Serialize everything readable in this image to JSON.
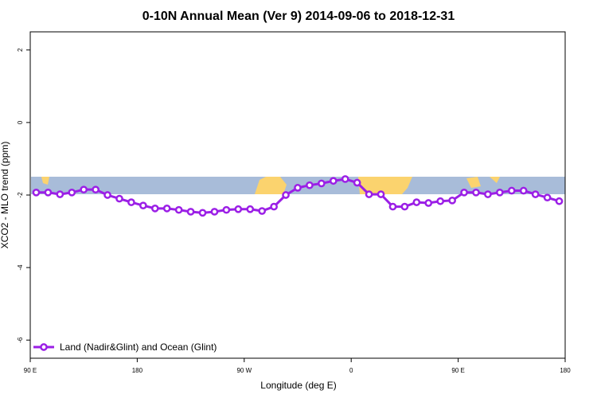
{
  "chart_data": {
    "type": "line",
    "title": "0-10N Annual Mean (Ver 9)   2014-09-06 to 2018-12-31",
    "xlabel": "Longitude (deg E)",
    "ylabel": "XCO2 - MLO trend (ppm)",
    "x": [
      95,
      105,
      115,
      125,
      135,
      145,
      155,
      165,
      175,
      185,
      195,
      205,
      215,
      225,
      235,
      245,
      255,
      265,
      275,
      285,
      295,
      305,
      315,
      325,
      335,
      345,
      355,
      365,
      375,
      385,
      395,
      405,
      415,
      425,
      435,
      445,
      455,
      465,
      475,
      485,
      495,
      505,
      515,
      525,
      535
    ],
    "series": [
      {
        "name": "Land (Nadir&Glint) and Ocean (Glint)",
        "color": "#9b1fe6",
        "values": [
          -1.93,
          -1.93,
          -1.98,
          -1.93,
          -1.85,
          -1.85,
          -2.0,
          -2.1,
          -2.2,
          -2.29,
          -2.37,
          -2.37,
          -2.41,
          -2.46,
          -2.49,
          -2.46,
          -2.41,
          -2.39,
          -2.39,
          -2.44,
          -2.32,
          -2.0,
          -1.8,
          -1.73,
          -1.68,
          -1.61,
          -1.56,
          -1.66,
          -1.98,
          -1.98,
          -2.32,
          -2.32,
          -2.2,
          -2.22,
          -2.17,
          -2.15,
          -1.93,
          -1.93,
          -1.98,
          -1.93,
          -1.88,
          -1.88,
          -1.98,
          -2.07,
          -2.17
        ]
      }
    ],
    "xlim": [
      90,
      540
    ],
    "xticks": [
      {
        "value": 90,
        "label": "90 E"
      },
      180,
      {
        "value": 270,
        "label": "90 W"
      },
      {
        "value": 360,
        "label": "0"
      },
      {
        "value": 450,
        "label": "90 E"
      },
      {
        "value": 540,
        "label": "180"
      }
    ],
    "ylim": [
      -6.5,
      2.5
    ],
    "yticks": [
      2,
      0,
      -2,
      -4,
      -6
    ],
    "legend": "bottom-left"
  }
}
